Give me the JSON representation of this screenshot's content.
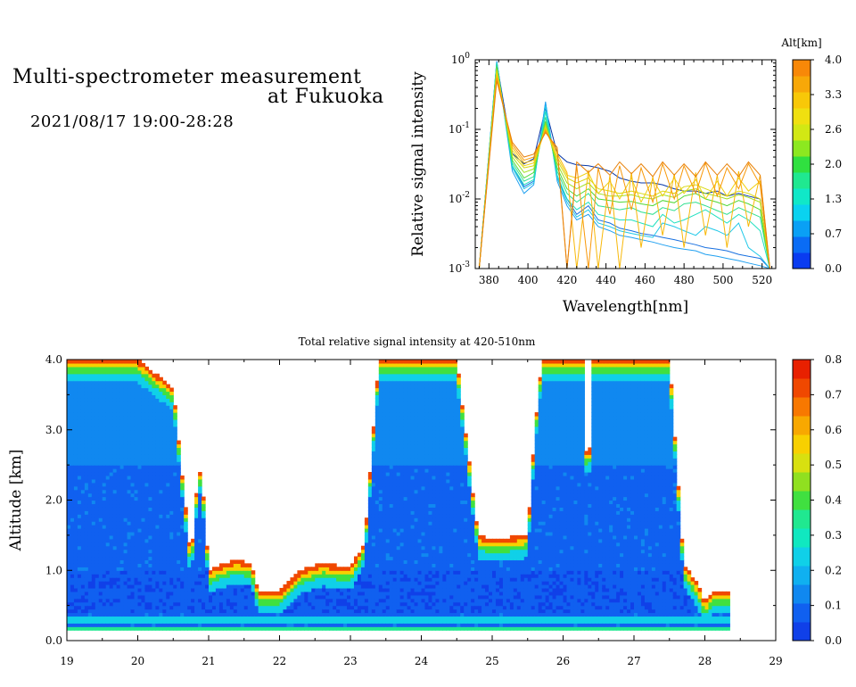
{
  "header": {
    "title_line1": "Multi-spectrometer measurement",
    "title_line2": "at Fukuoka",
    "subtitle": "2021/08/17 19:00-28:28"
  },
  "chart_data": [
    {
      "type": "line",
      "xlabel": "Wavelength[nm]",
      "ylabel": "Relative signal intensity",
      "xlim": [
        373,
        527
      ],
      "xticks": [
        380,
        400,
        420,
        440,
        460,
        480,
        500,
        520
      ],
      "ylim": [
        0.001,
        1
      ],
      "yscale": "log",
      "yticks": [
        {
          "v": 0.001,
          "base": "10",
          "exp": "-3"
        },
        {
          "v": 0.01,
          "base": "10",
          "exp": "-2"
        },
        {
          "v": 0.1,
          "base": "10",
          "exp": "-1"
        },
        {
          "v": 1,
          "base": "10",
          "exp": "0"
        }
      ],
      "colorbar": {
        "title": "Alt[km]",
        "range": [
          0,
          4
        ],
        "ticks": [
          "0.0",
          "0.7",
          "1.3",
          "2.0",
          "2.6",
          "3.3",
          "4.0"
        ],
        "colors": [
          "#0a3cf0",
          "#0a6cf5",
          "#0aa0f5",
          "#0ad2f0",
          "#10e8c8",
          "#20e890",
          "#30e040",
          "#8ce820",
          "#d2e814",
          "#f0e010",
          "#f8c808",
          "#f8a808",
          "#f88808"
        ]
      },
      "x": [
        375,
        384,
        392,
        398,
        403,
        409,
        415,
        420,
        425,
        431,
        436,
        442,
        447,
        453,
        458,
        464,
        469,
        475,
        480,
        486,
        491,
        497,
        502,
        508,
        513,
        519,
        524
      ],
      "series": [
        {
          "alt": 0.2,
          "color": "#0838a8",
          "values": [
            0.001,
            0.9,
            0.045,
            0.032,
            0.038,
            0.2,
            0.045,
            0.034,
            0.031,
            0.03,
            0.028,
            0.025,
            0.02,
            0.018,
            0.017,
            0.017,
            0.016,
            0.014,
            0.013,
            0.013,
            0.012,
            0.013,
            0.011,
            0.012,
            0.011,
            0.01,
            0.001
          ]
        },
        {
          "alt": 0.5,
          "color": "#1870e0",
          "values": [
            0.001,
            0.95,
            0.03,
            0.015,
            0.018,
            0.24,
            0.02,
            0.01,
            0.006,
            0.008,
            0.005,
            0.0045,
            0.0038,
            0.0035,
            0.0032,
            0.003,
            0.0028,
            0.0026,
            0.0024,
            0.0022,
            0.002,
            0.0019,
            0.0018,
            0.0016,
            0.0015,
            0.0014,
            0.001
          ]
        },
        {
          "alt": 0.8,
          "color": "#20a0f0",
          "values": [
            0.001,
            0.95,
            0.025,
            0.012,
            0.016,
            0.25,
            0.018,
            0.008,
            0.005,
            0.006,
            0.004,
            0.0035,
            0.003,
            0.0028,
            0.0026,
            0.0024,
            0.0022,
            0.002,
            0.0019,
            0.0018,
            0.0016,
            0.0015,
            0.0014,
            0.0013,
            0.0012,
            0.0011,
            0.001
          ]
        },
        {
          "alt": 1.1,
          "color": "#20c8e8",
          "values": [
            0.001,
            0.9,
            0.028,
            0.014,
            0.017,
            0.22,
            0.02,
            0.009,
            0.0055,
            0.007,
            0.0045,
            0.004,
            0.0035,
            0.0032,
            0.003,
            0.0028,
            0.0045,
            0.004,
            0.0035,
            0.003,
            0.004,
            0.0035,
            0.003,
            0.0045,
            0.002,
            0.0015,
            0.001
          ]
        },
        {
          "alt": 1.4,
          "color": "#20e0c0",
          "values": [
            0.001,
            0.9,
            0.03,
            0.016,
            0.019,
            0.18,
            0.022,
            0.01,
            0.007,
            0.009,
            0.006,
            0.0055,
            0.005,
            0.005,
            0.0045,
            0.004,
            0.006,
            0.0045,
            0.005,
            0.006,
            0.007,
            0.0055,
            0.0045,
            0.006,
            0.005,
            0.0035,
            0.001
          ]
        },
        {
          "alt": 1.7,
          "color": "#30e090",
          "values": [
            0.001,
            0.85,
            0.033,
            0.018,
            0.021,
            0.15,
            0.025,
            0.012,
            0.009,
            0.012,
            0.008,
            0.0075,
            0.007,
            0.0075,
            0.0065,
            0.006,
            0.0075,
            0.0068,
            0.0085,
            0.009,
            0.008,
            0.0068,
            0.006,
            0.0075,
            0.0065,
            0.0055,
            0.001
          ]
        },
        {
          "alt": 2.0,
          "color": "#50d838",
          "values": [
            0.001,
            0.8,
            0.036,
            0.02,
            0.024,
            0.13,
            0.028,
            0.014,
            0.011,
            0.014,
            0.01,
            0.0095,
            0.009,
            0.0092,
            0.0085,
            0.008,
            0.0095,
            0.0088,
            0.011,
            0.012,
            0.01,
            0.009,
            0.008,
            0.0095,
            0.0085,
            0.007,
            0.001
          ]
        },
        {
          "alt": 2.3,
          "color": "#a0e020",
          "values": [
            0.001,
            0.75,
            0.04,
            0.024,
            0.027,
            0.12,
            0.032,
            0.017,
            0.014,
            0.017,
            0.012,
            0.011,
            0.011,
            0.0115,
            0.0105,
            0.01,
            0.0115,
            0.0105,
            0.013,
            0.014,
            0.012,
            0.011,
            0.01,
            0.0115,
            0.0105,
            0.009,
            0.001
          ]
        },
        {
          "alt": 2.6,
          "color": "#d8d810",
          "values": [
            0.001,
            0.7,
            0.044,
            0.028,
            0.03,
            0.11,
            0.036,
            0.02,
            0.017,
            0.02,
            0.014,
            0.013,
            0.012,
            0.013,
            0.012,
            0.011,
            0.013,
            0.012,
            0.015,
            0.016,
            0.014,
            0.012,
            0.011,
            0.013,
            0.012,
            0.01,
            0.001
          ]
        },
        {
          "alt": 2.9,
          "color": "#f0d010",
          "values": [
            0.001,
            0.65,
            0.05,
            0.03,
            0.033,
            0.1,
            0.04,
            0.022,
            0.02,
            0.024,
            0.012,
            0.018,
            0.01,
            0.02,
            0.009,
            0.019,
            0.011,
            0.02,
            0.012,
            0.019,
            0.01,
            0.018,
            0.011,
            0.02,
            0.013,
            0.018,
            0.001
          ]
        },
        {
          "alt": 3.2,
          "color": "#f8b808",
          "values": [
            0.001,
            0.6,
            0.055,
            0.033,
            0.036,
            0.1,
            0.045,
            0.024,
            0.001,
            0.026,
            0.001,
            0.022,
            0.001,
            0.024,
            0.002,
            0.021,
            0.003,
            0.023,
            0.002,
            0.024,
            0.003,
            0.022,
            0.002,
            0.025,
            0.004,
            0.022,
            0.001
          ]
        },
        {
          "alt": 3.6,
          "color": "#f89808",
          "values": [
            0.001,
            0.55,
            0.06,
            0.036,
            0.04,
            0.095,
            0.05,
            0.001,
            0.03,
            0.001,
            0.028,
            0.006,
            0.03,
            0.007,
            0.028,
            0.009,
            0.032,
            0.01,
            0.03,
            0.012,
            0.033,
            0.011,
            0.028,
            0.014,
            0.032,
            0.016,
            0.001
          ]
        },
        {
          "alt": 3.9,
          "color": "#e88008",
          "values": [
            0.001,
            0.5,
            0.065,
            0.04,
            0.044,
            0.09,
            0.055,
            0.001,
            0.034,
            0.024,
            0.032,
            0.022,
            0.034,
            0.023,
            0.032,
            0.021,
            0.034,
            0.022,
            0.032,
            0.021,
            0.034,
            0.022,
            0.032,
            0.021,
            0.034,
            0.022,
            0.001
          ]
        }
      ]
    },
    {
      "type": "heatmap",
      "title": "Total relative signal intensity at 420-510nm",
      "ylabel": "Altitude [km]",
      "xlim": [
        19,
        29
      ],
      "ylim": [
        0,
        4
      ],
      "xticks": [
        "19",
        "20",
        "21",
        "22",
        "23",
        "24",
        "25",
        "26",
        "27",
        "28",
        "29"
      ],
      "yticks": [
        "0.0",
        "1.0",
        "2.0",
        "3.0",
        "4.0"
      ],
      "colorbar": {
        "range": [
          0,
          0.8
        ],
        "ticks": [
          "0.0",
          "0.1",
          "0.2",
          "0.3",
          "0.4",
          "0.5",
          "0.6",
          "0.7",
          "0.8"
        ],
        "colors": [
          "#1040e8",
          "#1060f0",
          "#1088f0",
          "#10b0f0",
          "#10d0e8",
          "#10e8c0",
          "#20e890",
          "#40e040",
          "#90e020",
          "#d8e010",
          "#f8d000",
          "#f8a800",
          "#f87800",
          "#f04800",
          "#e82000"
        ]
      },
      "data_extent_x": [
        19,
        28.33
      ],
      "cloud_base_km": {
        "x": [
          19.0,
          19.5,
          20.0,
          20.5,
          20.75,
          20.85,
          20.9,
          21.0,
          21.1,
          21.4,
          21.6,
          21.7,
          22.0,
          22.3,
          22.6,
          23.0,
          23.2,
          23.4,
          24.0,
          24.5,
          24.8,
          25.0,
          25.5,
          25.6,
          25.7,
          26.0,
          26.3,
          26.35,
          26.4,
          26.5,
          27.0,
          27.5,
          27.7,
          27.9,
          28.0,
          28.1,
          28.3
        ],
        "top": [
          4.0,
          4.0,
          4.0,
          3.6,
          1.15,
          2.4,
          2.4,
          1.0,
          1.05,
          1.15,
          1.1,
          0.7,
          0.7,
          1.0,
          1.1,
          1.05,
          1.4,
          4.0,
          4.0,
          4.0,
          1.5,
          1.45,
          1.5,
          3.0,
          4.0,
          4.0,
          4.0,
          1.45,
          4.0,
          4.0,
          4.0,
          4.0,
          1.1,
          0.8,
          0.55,
          0.7,
          0.7
        ]
      },
      "clear_gaps": [
        {
          "x0": 20.7,
          "x1": 21.0,
          "ytop_low": 1.2
        },
        {
          "x0": 25.2,
          "x1": 25.55,
          "ytop_low": 1.5
        },
        {
          "x0": 26.38,
          "x1": 26.42,
          "ytop_low": 1.5
        }
      ]
    }
  ]
}
